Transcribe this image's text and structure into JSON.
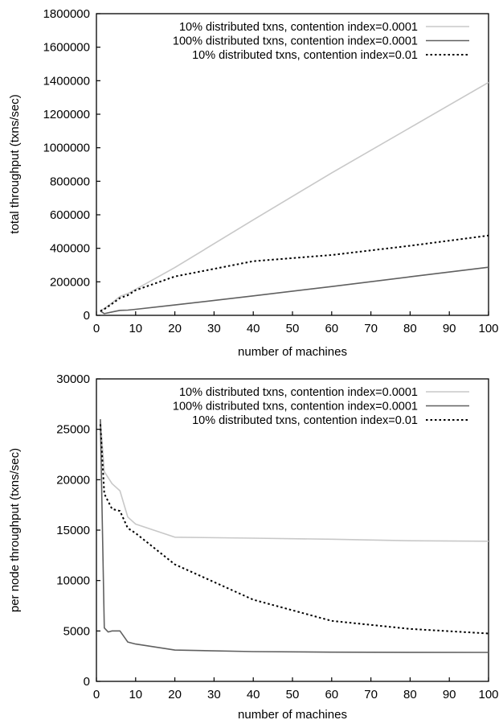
{
  "chart_data": [
    {
      "type": "line",
      "title": "",
      "xlabel": "number of machines",
      "ylabel": "total throughput (txns/sec)",
      "xlim": [
        0,
        100
      ],
      "ylim": [
        0,
        1800000
      ],
      "xticks": [
        0,
        10,
        20,
        30,
        40,
        50,
        60,
        70,
        80,
        90,
        100
      ],
      "yticks": [
        0,
        200000,
        400000,
        600000,
        800000,
        1000000,
        1200000,
        1400000,
        1600000,
        1800000
      ],
      "grid": false,
      "legend": "top-right",
      "series": [
        {
          "name": "10% distributed txns, contention index=0.0001",
          "color": "#c8c8c8",
          "style": "solid",
          "x": [
            1,
            2,
            4,
            6,
            8,
            10,
            20,
            40,
            60,
            80,
            100
          ],
          "y": [
            26000,
            41000,
            75000,
            113000,
            130000,
            155000,
            285000,
            570000,
            850000,
            1120000,
            1390000
          ]
        },
        {
          "name": "100% distributed txns, contention index=0.0001",
          "color": "#606060",
          "style": "solid",
          "x": [
            1,
            2,
            4,
            6,
            8,
            10,
            20,
            40,
            60,
            80,
            100
          ],
          "y": [
            26000,
            10000,
            20000,
            30000,
            31000,
            36000,
            62000,
            116000,
            172000,
            230000,
            287000
          ]
        },
        {
          "name": "10% distributed txns, contention index=0.01",
          "color": "#000000",
          "style": "dotted",
          "x": [
            1,
            2,
            4,
            6,
            8,
            10,
            20,
            40,
            60,
            80,
            100
          ],
          "y": [
            26000,
            37000,
            69000,
            103000,
            120000,
            150000,
            232000,
            323000,
            360000,
            415000,
            476000
          ]
        }
      ]
    },
    {
      "type": "line",
      "title": "",
      "xlabel": "number of machines",
      "ylabel": "per node throughput (txns/sec)",
      "xlim": [
        0,
        100
      ],
      "ylim": [
        0,
        30000
      ],
      "xticks": [
        0,
        10,
        20,
        30,
        40,
        50,
        60,
        70,
        80,
        90,
        100
      ],
      "yticks": [
        0,
        5000,
        10000,
        15000,
        20000,
        25000,
        30000
      ],
      "grid": false,
      "legend": "top-right",
      "series": [
        {
          "name": "10% distributed txns, contention index=0.0001",
          "color": "#c8c8c8",
          "style": "solid",
          "x": [
            1,
            2,
            4,
            6,
            8,
            10,
            20,
            40,
            60,
            80,
            100
          ],
          "y": [
            26000,
            20800,
            19600,
            18900,
            16300,
            15600,
            14300,
            14200,
            14100,
            13950,
            13900
          ]
        },
        {
          "name": "100% distributed txns, contention index=0.0001",
          "color": "#606060",
          "style": "solid",
          "x": [
            1,
            2,
            3,
            4,
            6,
            8,
            10,
            20,
            40,
            60,
            80,
            100
          ],
          "y": [
            26000,
            5300,
            4900,
            5000,
            5000,
            3900,
            3700,
            3100,
            2950,
            2900,
            2880,
            2870
          ]
        },
        {
          "name": "10% distributed txns, contention index=0.01",
          "color": "#000000",
          "style": "dotted",
          "x": [
            1,
            2,
            4,
            6,
            8,
            10,
            20,
            40,
            60,
            80,
            100
          ],
          "y": [
            25500,
            18600,
            17100,
            16900,
            15200,
            14700,
            11600,
            8100,
            6000,
            5200,
            4750
          ]
        }
      ]
    }
  ]
}
